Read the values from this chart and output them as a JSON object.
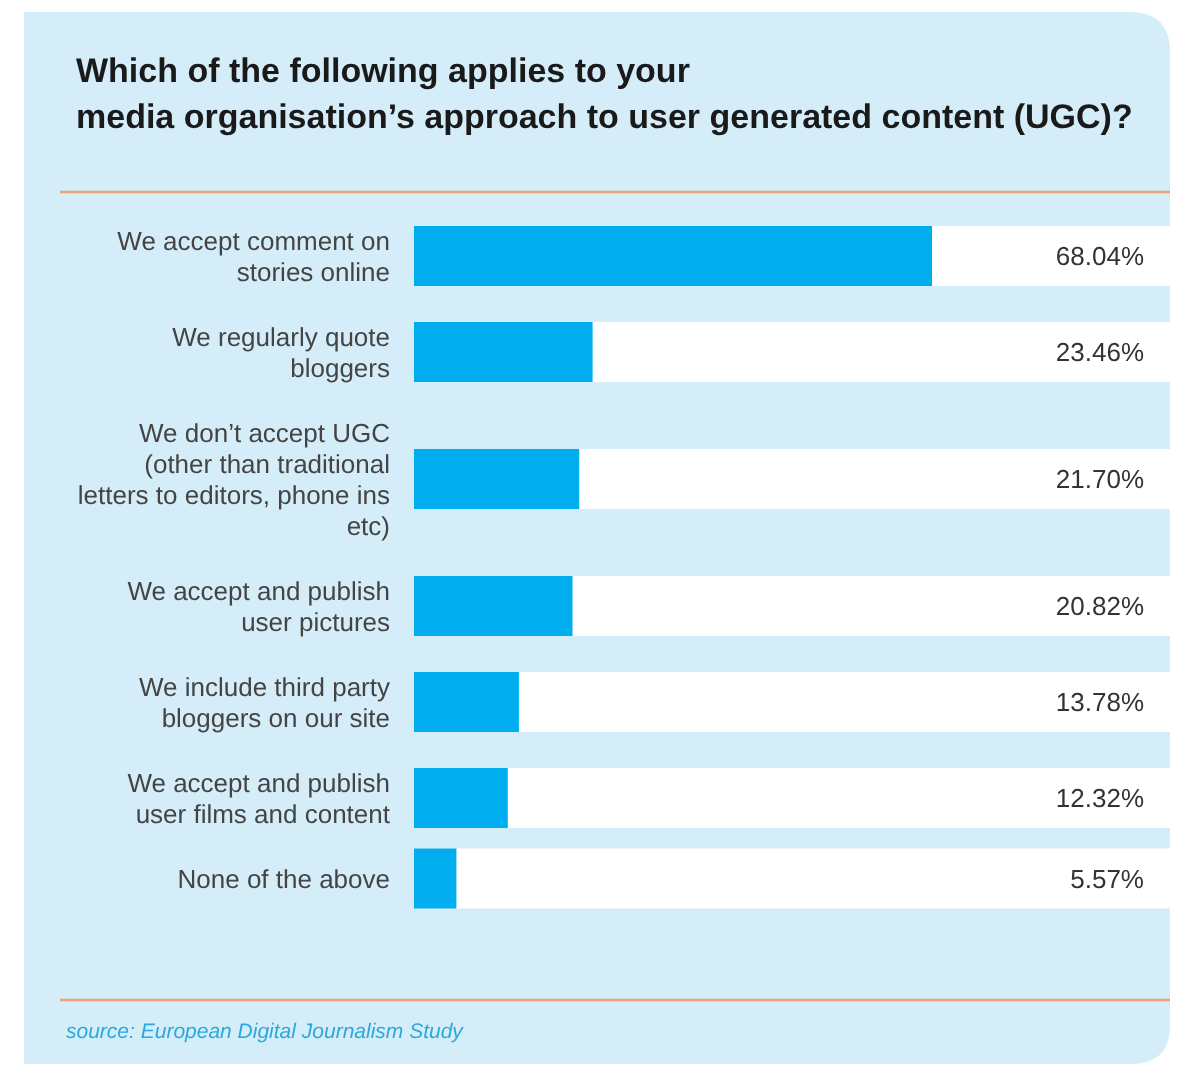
{
  "chart_data": {
    "type": "bar",
    "orientation": "horizontal",
    "title": "Which of the following applies to your media organisation’s approach to user generated content (UGC)?",
    "categories": [
      "We accept comment on stories online",
      "We regularly quote bloggers",
      "We don’t accept UGC (other than traditional letters to editors, phone ins etc)",
      "We accept and publish user pictures",
      "We include third party bloggers on our site",
      "We accept and publish user films and content",
      "None of the above"
    ],
    "values": [
      68.04,
      23.46,
      21.7,
      20.82,
      13.78,
      12.32,
      5.57
    ],
    "value_labels": [
      "68.04%",
      "23.46%",
      "21.70%",
      "20.82%",
      "13.78%",
      "12.32%",
      "5.57%"
    ],
    "color": "#00aeef",
    "annotations": [
      "source: European Digital Journalism Study"
    ]
  }
}
